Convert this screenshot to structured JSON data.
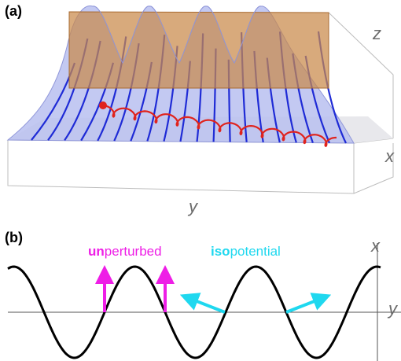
{
  "panel_a": {
    "label": "(a)",
    "axis_z": "z",
    "axis_x": "x",
    "axis_y": "y",
    "colors": {
      "surface": "#b9bff0",
      "field_lines": "#1f2bd6",
      "plane": "#c9894a",
      "trajectory": "#e0231d",
      "box": "#bdbdbd"
    }
  },
  "panel_b": {
    "label": "(b)",
    "axis_x": "x",
    "axis_y": "y",
    "unperturbed_prefix": "un",
    "unperturbed_rest": "perturbed",
    "isopotential_prefix": "iso",
    "isopotential_rest": "potential",
    "colors": {
      "curve": "#000000",
      "unperturbed": "#ee1ee6",
      "isopotential": "#1fd8ef",
      "axes": "#555555"
    }
  }
}
